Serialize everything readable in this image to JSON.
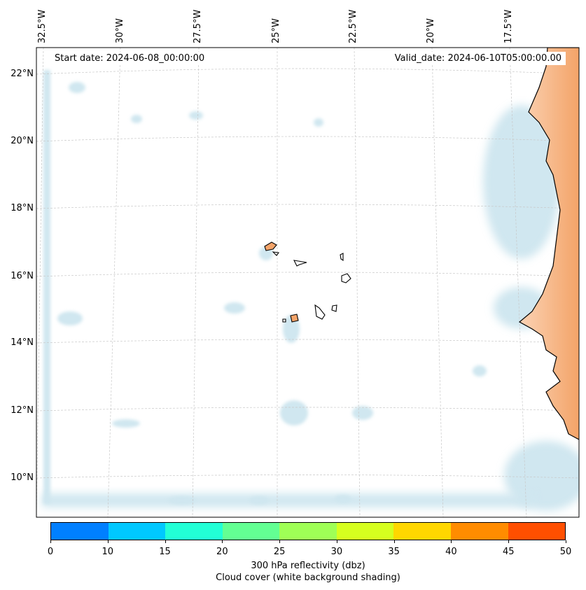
{
  "annotations": {
    "start_date": "Start date: 2024-06-08_00:00:00",
    "valid_date": "Valid_date: 2024-06-10T05:00:00.00"
  },
  "lon_labels": [
    "32.5°W",
    "30°W",
    "27.5°W",
    "25°W",
    "22.5°W",
    "20°W",
    "17.5°W"
  ],
  "lat_labels": [
    "22°N",
    "20°N",
    "18°N",
    "16°N",
    "14°N",
    "12°N",
    "10°N"
  ],
  "colorbar": {
    "ticks": [
      "0",
      "10",
      "15",
      "20",
      "25",
      "30",
      "35",
      "40",
      "45",
      "50"
    ],
    "colors": [
      "#0080ff",
      "#00c8ff",
      "#22ffd6",
      "#63ff93",
      "#9fff56",
      "#d6ff1f",
      "#ffd700",
      "#ff8c00",
      "#ff4f00"
    ],
    "label_line1": "300 hPa reflectivity (dbz)",
    "label_line2": "Cloud cover (white background shading)"
  },
  "colors": {
    "land": "#f4a46a",
    "cloud": "#a9d3e3",
    "grid": "#c8c8c8"
  }
}
